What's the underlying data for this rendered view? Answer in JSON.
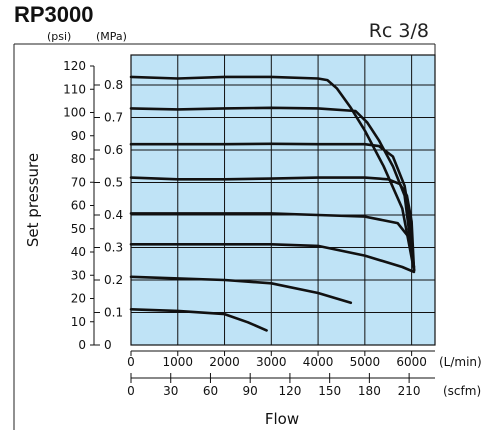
{
  "header": {
    "model": "RP3000",
    "port": "Rc 3/8"
  },
  "chart_data": {
    "type": "line",
    "title": "RP3000",
    "subtitle": "Rc 3/8",
    "xlabel": "Flow",
    "ylabel": "Set pressure",
    "x_unit": "(L/min)",
    "x_secondary_unit": "(scfm)",
    "y_unit": "(MPa)",
    "y_secondary_unit": "(psi)",
    "xlim": [
      0,
      6500
    ],
    "ylim": [
      0,
      0.9
    ],
    "x_ticks": [
      "0",
      "1000",
      "2000",
      "3000",
      "4000",
      "5000",
      "6000"
    ],
    "x_secondary_ticks": [
      "0",
      "30",
      "60",
      "90",
      "120",
      "150",
      "180",
      "210"
    ],
    "y_ticks": [
      "0",
      "0.1",
      "0.2",
      "0.3",
      "0.4",
      "0.5",
      "0.6",
      "0.7",
      "0.8"
    ],
    "y_secondary_ticks": [
      "0",
      "10",
      "20",
      "30",
      "40",
      "50",
      "60",
      "70",
      "80",
      "90",
      "100",
      "110",
      "120"
    ],
    "grid": true,
    "background_color": "#bfe3f6",
    "line_color": "#111111",
    "series": [
      {
        "x": [
          0,
          1000,
          2000,
          2500,
          2900
        ],
        "y": [
          0.11,
          0.105,
          0.095,
          0.07,
          0.045
        ]
      },
      {
        "x": [
          0,
          1000,
          2000,
          3000,
          4000,
          4700
        ],
        "y": [
          0.21,
          0.205,
          0.2,
          0.19,
          0.16,
          0.13
        ]
      },
      {
        "x": [
          0,
          1000,
          2000,
          3000,
          4000,
          5000,
          5800,
          6050
        ],
        "y": [
          0.31,
          0.31,
          0.31,
          0.31,
          0.305,
          0.275,
          0.24,
          0.225
        ]
      },
      {
        "x": [
          0,
          1000,
          2000,
          3000,
          4000,
          5000,
          5700,
          5950,
          6050
        ],
        "y": [
          0.405,
          0.405,
          0.405,
          0.405,
          0.4,
          0.395,
          0.375,
          0.33,
          0.24
        ]
      },
      {
        "x": [
          0,
          1000,
          2000,
          3000,
          4000,
          5000,
          5500,
          5750,
          5900,
          6000,
          6050
        ],
        "y": [
          0.515,
          0.51,
          0.51,
          0.512,
          0.515,
          0.515,
          0.51,
          0.495,
          0.46,
          0.38,
          0.23
        ]
      },
      {
        "x": [
          0,
          1000,
          2000,
          3000,
          4000,
          5000,
          5300,
          5600,
          5850,
          5950,
          6050
        ],
        "y": [
          0.618,
          0.618,
          0.618,
          0.619,
          0.618,
          0.618,
          0.612,
          0.58,
          0.49,
          0.4,
          0.23
        ]
      },
      {
        "x": [
          0,
          1000,
          2000,
          3000,
          4000,
          4800,
          5050,
          5300,
          5600,
          5850,
          6050
        ],
        "y": [
          0.728,
          0.725,
          0.728,
          0.73,
          0.728,
          0.72,
          0.685,
          0.63,
          0.55,
          0.46,
          0.23
        ]
      },
      {
        "x": [
          0,
          1000,
          2000,
          3000,
          4000,
          4200,
          4400,
          4700,
          5000,
          5400,
          5800,
          6050
        ],
        "y": [
          0.825,
          0.82,
          0.825,
          0.825,
          0.82,
          0.815,
          0.79,
          0.73,
          0.66,
          0.55,
          0.42,
          0.23
        ]
      }
    ]
  }
}
